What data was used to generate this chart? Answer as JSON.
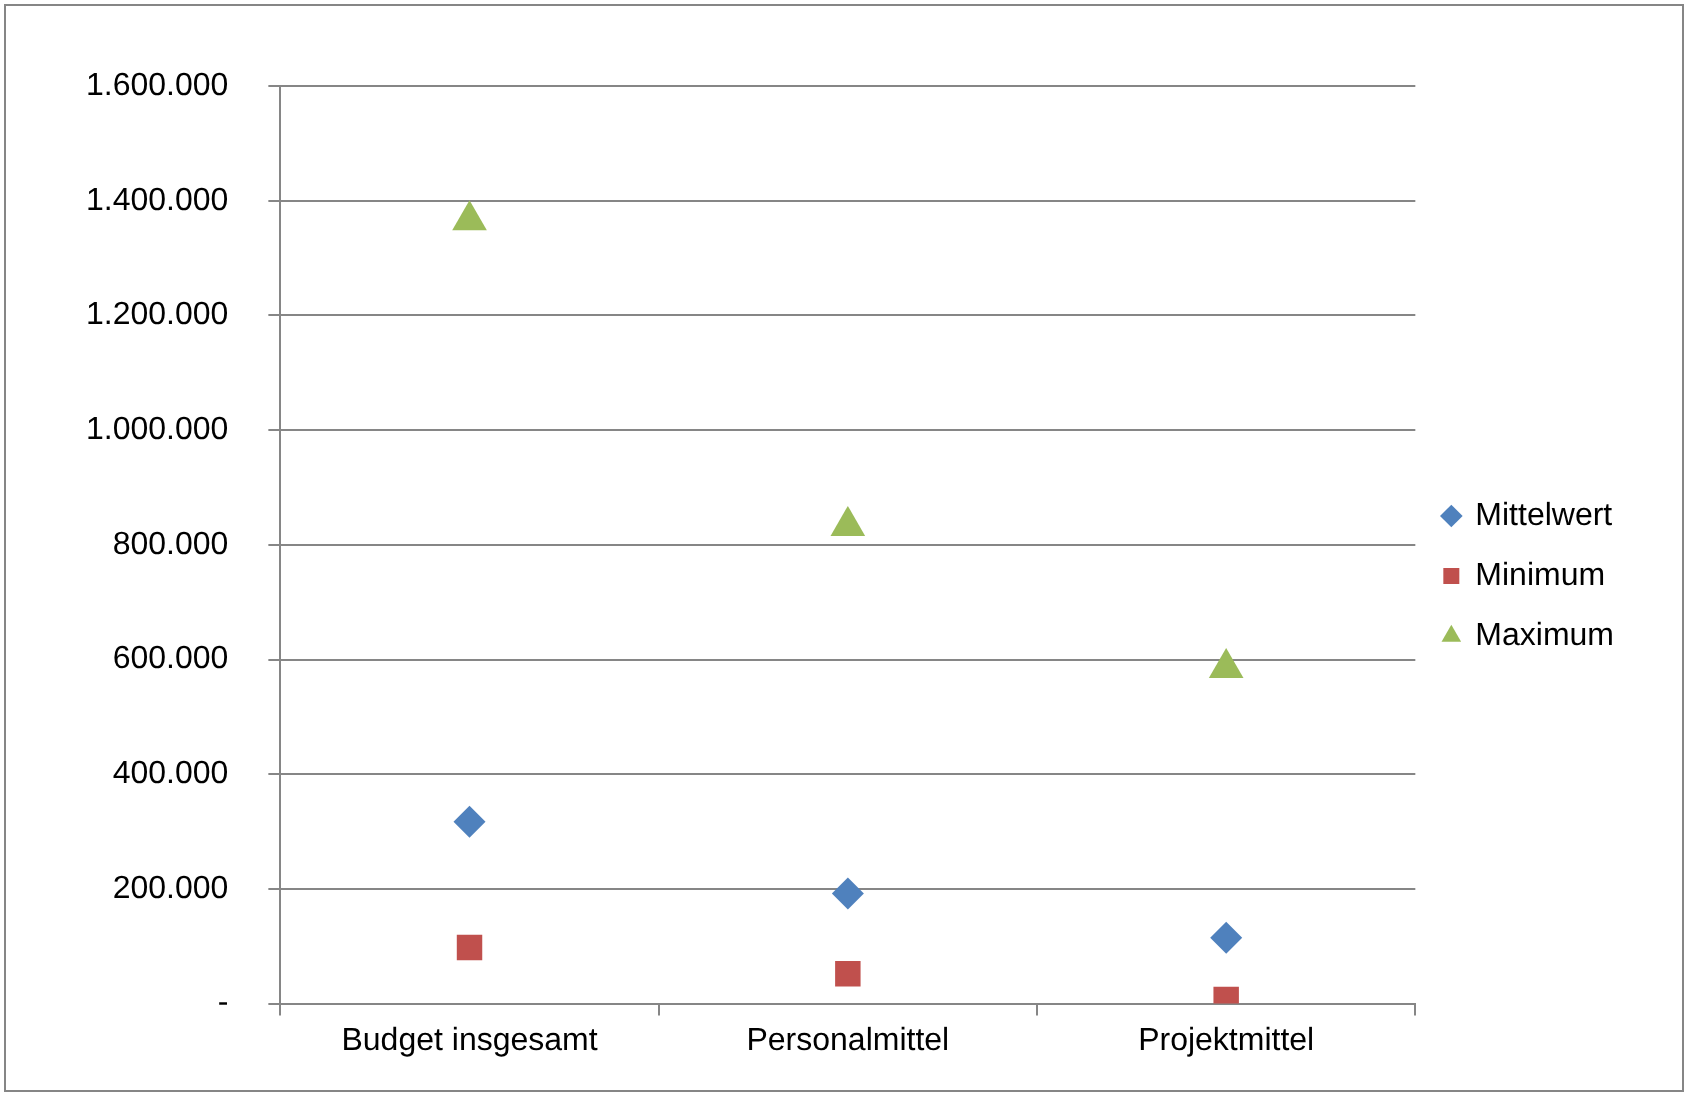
{
  "chart_data": {
    "type": "scatter",
    "categories": [
      "Budget insgesamt",
      "Personalmittel",
      "Projektmittel"
    ],
    "series": [
      {
        "name": "Mittelwert",
        "color": "#4f81bd",
        "marker": "diamond",
        "x": [
          "Budget insgesamt",
          "Personalmittel",
          "Projektmittel"
        ],
        "values": [
          317000,
          192000,
          115000
        ]
      },
      {
        "name": "Minimum",
        "color": "#c0504d",
        "marker": "square",
        "x": [
          "Budget insgesamt",
          "Personalmittel",
          "Projektmittel"
        ],
        "values": [
          98000,
          52000,
          7000
        ]
      },
      {
        "name": "Maximum",
        "color": "#9bbb59",
        "marker": "triangle",
        "x": [
          "Budget insgesamt",
          "Personalmittel",
          "Projektmittel"
        ],
        "values": [
          1366000,
          833000,
          585000
        ]
      }
    ],
    "ylim": [
      0,
      1600000
    ],
    "yticks": [
      {
        "value": 0,
        "label": "-"
      },
      {
        "value": 200000,
        "label": "200.000"
      },
      {
        "value": 400000,
        "label": "400.000"
      },
      {
        "value": 600000,
        "label": "600.000"
      },
      {
        "value": 800000,
        "label": "800.000"
      },
      {
        "value": 1000000,
        "label": "1.000.000"
      },
      {
        "value": 1200000,
        "label": "1.200.000"
      },
      {
        "value": 1400000,
        "label": "1.400.000"
      },
      {
        "value": 1600000,
        "label": "1.600.000"
      }
    ],
    "grid": "y",
    "legend": "right"
  }
}
